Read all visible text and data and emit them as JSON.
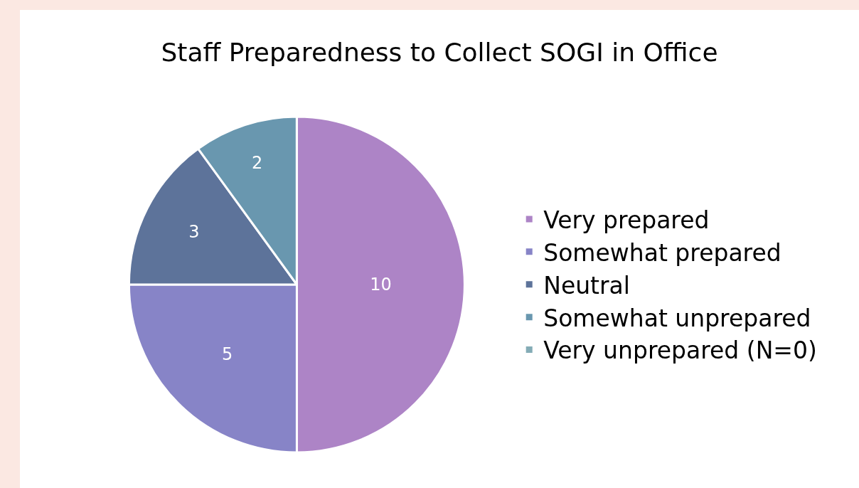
{
  "chart_data": {
    "type": "pie",
    "title": "Staff Preparedness to Collect SOGI in Office",
    "categories": [
      "Very prepared",
      "Somewhat prepared",
      "Neutral",
      "Somewhat unprepared",
      "Very unprepared (N=0)"
    ],
    "values": [
      10,
      5,
      3,
      2,
      0
    ],
    "value_labels": [
      "10",
      "5",
      "3",
      "2",
      null
    ],
    "colors": [
      "#ad84c6",
      "#8784c7",
      "#5d739a",
      "#6997af",
      "#84acb6"
    ],
    "legend": "right"
  }
}
